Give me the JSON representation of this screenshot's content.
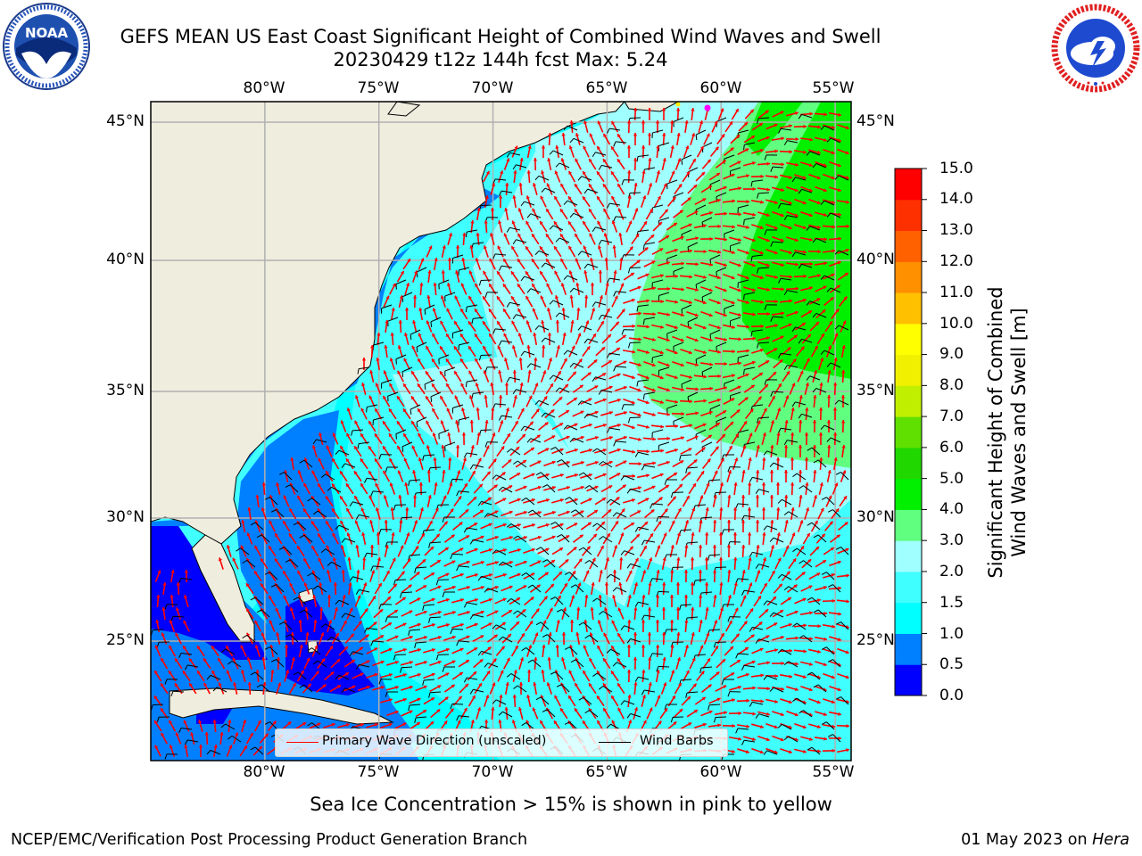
{
  "title": {
    "line1": "GEFS MEAN US East Coast Significant Height of Combined Wind Waves and Swell",
    "line2": "20230429 t12z 144h fcst   Max: 5.24"
  },
  "logos": {
    "noaa": {
      "icon": "noaa-logo-icon",
      "text": "NOAA",
      "ring_text": "NATIONAL OCEANIC AND ATMOSPHERIC ADMINISTRATION · U.S. DEPARTMENT OF COMMERCE"
    },
    "nws": {
      "icon": "nws-logo-icon",
      "ring_text": "NATIONAL WEATHER SERVICE"
    }
  },
  "map": {
    "lon_labels": [
      "80°W",
      "75°W",
      "70°W",
      "65°W",
      "60°W",
      "55°W"
    ],
    "lat_labels": [
      "45°N",
      "40°N",
      "35°N",
      "30°N",
      "25°N"
    ],
    "extent": {
      "lon_min": -85,
      "lon_max": -54.3,
      "lat_min": 20.0,
      "lat_max": 45.8
    },
    "land_color": "#efedde",
    "grid_color": "#b0b0b0",
    "arrow_color": "#ff0000",
    "barb_color": "#000000",
    "field": {
      "description_of_max": "Max: 5.24",
      "centers": [
        {
          "lon": -54.5,
          "lat": 38.2,
          "value": 5.0
        },
        {
          "lon": -56.5,
          "lat": 40.5,
          "value": 3.8
        }
      ]
    }
  },
  "colorbar": {
    "label_line1": "Significant Height of Combined",
    "label_line2": "Wind Waves and Swell [m]",
    "ticks": [
      "0.0",
      "0.5",
      "1.0",
      "1.5",
      "2.0",
      "3.0",
      "4.0",
      "5.0",
      "6.0",
      "7.0",
      "8.0",
      "9.0",
      "10.0",
      "11.0",
      "12.0",
      "13.0",
      "14.0",
      "15.0"
    ],
    "colors": [
      "#0000ff",
      "#0080ff",
      "#00ffff",
      "#40ffff",
      "#a0ffff",
      "#60ff80",
      "#00f000",
      "#20d800",
      "#60e000",
      "#c0f000",
      "#f0f000",
      "#ffff00",
      "#ffc000",
      "#ff9000",
      "#ff6000",
      "#ff3000",
      "#ff0000"
    ]
  },
  "legend": {
    "primary_wave": "Primary Wave Direction (unscaled)",
    "wind_barbs": "Wind Barbs"
  },
  "footer": {
    "sea_ice": "Sea Ice Concentration > 15% is shown in pink to yellow",
    "left": "NCEP/EMC/Verification Post Processing Product Generation Branch",
    "right_prefix": "01 May 2023 on ",
    "right_host": "Hera"
  }
}
